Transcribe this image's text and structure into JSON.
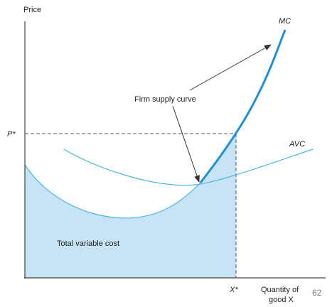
{
  "labels": {
    "y_axis": "Price",
    "x_axis_line1": "Quantity of",
    "x_axis_line2": "good X",
    "price_marker": "P*",
    "quantity_marker": "X*",
    "mc_curve": "MC",
    "avc_curve": "AVC",
    "annotation": "Firm supply curve",
    "shaded_area": "Total variable cost"
  },
  "slide_number": "62",
  "colors": {
    "curve": "#4db6dd",
    "supply_curve": "#1f8fd6",
    "shaded_area": "#c6e4f6",
    "axis": "#444444",
    "dashed": "#555555",
    "arrow": "#333333"
  }
}
